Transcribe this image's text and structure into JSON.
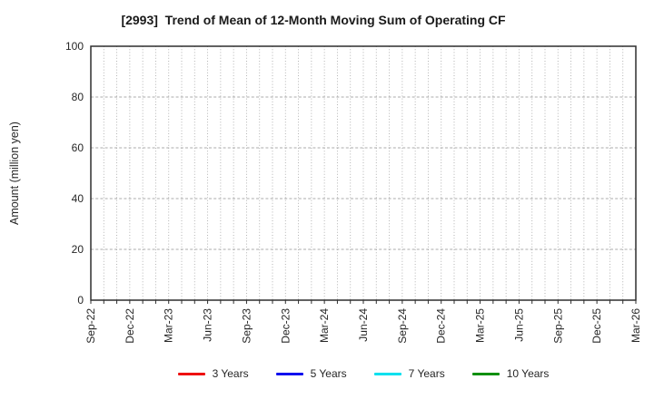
{
  "chart_data": {
    "type": "line",
    "title": "[2993]  Trend of Mean of 12-Month Moving Sum of Operating CF",
    "xlabel": "",
    "ylabel": "Amount (million yen)",
    "ylim": [
      0,
      100
    ],
    "yticks": [
      0,
      20,
      40,
      60,
      80,
      100
    ],
    "x_start": "Sep-22",
    "x_end": "Mar-26",
    "x_total_months": 42,
    "x_major_every_months": 3,
    "x_tick_labels": [
      "Sep-22",
      "Dec-22",
      "Mar-23",
      "Jun-23",
      "Sep-23",
      "Dec-23",
      "Mar-24",
      "Jun-24",
      "Sep-24",
      "Dec-24",
      "Mar-25",
      "Jun-25",
      "Sep-25",
      "Dec-25",
      "Mar-26"
    ],
    "grid": true,
    "gridline_style": {
      "vertical": "dotted, every month",
      "horizontal": "dashed, at yticks 20-80"
    },
    "legend_position": "bottom-center",
    "series": [
      {
        "name": "3 Years",
        "color": "#ee1111",
        "values": []
      },
      {
        "name": "5 Years",
        "color": "#1111ee",
        "values": []
      },
      {
        "name": "7 Years",
        "color": "#00e0ee",
        "values": []
      },
      {
        "name": "10 Years",
        "color": "#0f8f0f",
        "values": []
      }
    ],
    "colors": {
      "frame": "#2e2e2e",
      "grid": "#ababab",
      "text": "#262626",
      "background": "#ffffff"
    }
  }
}
